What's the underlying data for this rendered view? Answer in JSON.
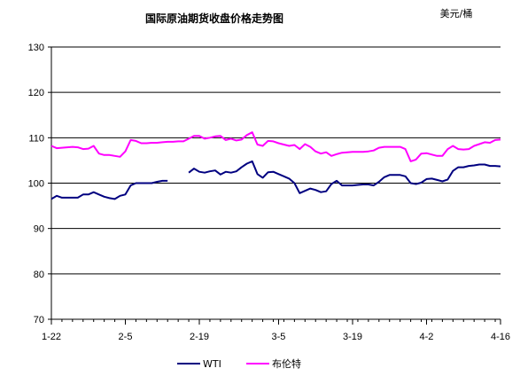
{
  "chart_data": {
    "type": "line",
    "title": "国际原油期货收盘价格走势图",
    "unit": "美元/桶",
    "ylim": [
      70,
      130
    ],
    "yticks": [
      70,
      80,
      90,
      100,
      110,
      120,
      130
    ],
    "xticks": [
      "1-22",
      "2-5",
      "2-19",
      "3-5",
      "3-19",
      "4-2",
      "4-16"
    ],
    "x_range": [
      "1-22",
      "4-16"
    ],
    "grid": "horizontal",
    "legend_position": "bottom",
    "colors": {
      "WTI": "#000080",
      "布伦特": "#ff00ff"
    },
    "series": [
      {
        "name": "WTI",
        "points": [
          [
            "1-22",
            96.5
          ],
          [
            "1-23",
            97.2
          ],
          [
            "1-24",
            96.8
          ],
          [
            "1-25",
            96.8
          ],
          [
            "1-26",
            96.8
          ],
          [
            "1-27",
            96.8
          ],
          [
            "1-28",
            97.5
          ],
          [
            "1-29",
            97.5
          ],
          [
            "1-30",
            98.0
          ],
          [
            "1-31",
            97.5
          ],
          [
            "2-1",
            97.0
          ],
          [
            "2-2",
            96.7
          ],
          [
            "2-3",
            96.5
          ],
          [
            "2-4",
            97.2
          ],
          [
            "2-5",
            97.5
          ],
          [
            "2-6",
            99.5
          ],
          [
            "2-7",
            100.0
          ],
          [
            "2-8",
            100.0
          ],
          [
            "2-9",
            100.0
          ],
          [
            "2-10",
            100.0
          ],
          [
            "2-11",
            100.3
          ],
          [
            "2-12",
            100.5
          ],
          [
            "2-13",
            100.5
          ],
          [
            "2-17",
            102.3
          ],
          [
            "2-18",
            103.2
          ],
          [
            "2-19",
            102.5
          ],
          [
            "2-20",
            102.3
          ],
          [
            "2-21",
            102.6
          ],
          [
            "2-22",
            102.8
          ],
          [
            "2-23",
            101.9
          ],
          [
            "2-24",
            102.5
          ],
          [
            "2-25",
            102.3
          ],
          [
            "2-26",
            102.6
          ],
          [
            "2-27",
            103.5
          ],
          [
            "2-28",
            104.3
          ],
          [
            "2-29",
            104.8
          ],
          [
            "3-1",
            102.0
          ],
          [
            "3-2",
            101.2
          ],
          [
            "3-3",
            102.4
          ],
          [
            "3-4",
            102.5
          ],
          [
            "3-5",
            102.0
          ],
          [
            "3-6",
            101.5
          ],
          [
            "3-7",
            101.0
          ],
          [
            "3-8",
            100.0
          ],
          [
            "3-9",
            97.8
          ],
          [
            "3-10",
            98.3
          ],
          [
            "3-11",
            98.8
          ],
          [
            "3-12",
            98.5
          ],
          [
            "3-13",
            98.0
          ],
          [
            "3-14",
            98.2
          ],
          [
            "3-15",
            99.8
          ],
          [
            "3-16",
            100.5
          ],
          [
            "3-17",
            99.5
          ],
          [
            "3-18",
            99.5
          ],
          [
            "3-19",
            99.5
          ],
          [
            "3-20",
            99.6
          ],
          [
            "3-21",
            99.7
          ],
          [
            "3-22",
            99.7
          ],
          [
            "3-23",
            99.5
          ],
          [
            "3-24",
            100.3
          ],
          [
            "3-25",
            101.3
          ],
          [
            "3-26",
            101.8
          ],
          [
            "3-27",
            101.8
          ],
          [
            "3-28",
            101.8
          ],
          [
            "3-29",
            101.5
          ],
          [
            "3-30",
            100.0
          ],
          [
            "3-31",
            99.8
          ],
          [
            "4-1",
            100.1
          ],
          [
            "4-2",
            100.9
          ],
          [
            "4-3",
            101.0
          ],
          [
            "4-4",
            100.7
          ],
          [
            "4-5",
            100.4
          ],
          [
            "4-6",
            100.8
          ],
          [
            "4-7",
            102.7
          ],
          [
            "4-8",
            103.5
          ],
          [
            "4-9",
            103.5
          ],
          [
            "4-10",
            103.8
          ],
          [
            "4-11",
            103.9
          ],
          [
            "4-12",
            104.1
          ],
          [
            "4-13",
            104.1
          ],
          [
            "4-14",
            103.8
          ],
          [
            "4-15",
            103.8
          ],
          [
            "4-16",
            103.7
          ]
        ]
      },
      {
        "name": "布伦特",
        "points": [
          [
            "1-22",
            108.2
          ],
          [
            "1-23",
            107.7
          ],
          [
            "1-24",
            107.8
          ],
          [
            "1-25",
            107.9
          ],
          [
            "1-26",
            108.0
          ],
          [
            "1-27",
            107.9
          ],
          [
            "1-28",
            107.5
          ],
          [
            "1-29",
            107.6
          ],
          [
            "1-30",
            108.2
          ],
          [
            "1-31",
            106.5
          ],
          [
            "2-1",
            106.2
          ],
          [
            "2-2",
            106.2
          ],
          [
            "2-3",
            106.0
          ],
          [
            "2-4",
            105.8
          ],
          [
            "2-5",
            107.0
          ],
          [
            "2-6",
            109.5
          ],
          [
            "2-7",
            109.3
          ],
          [
            "2-8",
            108.8
          ],
          [
            "2-9",
            108.8
          ],
          [
            "2-10",
            108.9
          ],
          [
            "2-11",
            108.9
          ],
          [
            "2-12",
            109.0
          ],
          [
            "2-13",
            109.1
          ],
          [
            "2-14",
            109.1
          ],
          [
            "2-15",
            109.2
          ],
          [
            "2-16",
            109.2
          ],
          [
            "2-17",
            109.8
          ],
          [
            "2-18",
            110.4
          ],
          [
            "2-19",
            110.4
          ],
          [
            "2-20",
            109.8
          ],
          [
            "2-21",
            110.0
          ],
          [
            "2-22",
            110.3
          ],
          [
            "2-23",
            110.4
          ],
          [
            "2-24",
            109.5
          ],
          [
            "2-25",
            109.8
          ],
          [
            "2-26",
            109.4
          ],
          [
            "2-27",
            109.6
          ],
          [
            "2-28",
            110.6
          ],
          [
            "2-29",
            111.2
          ],
          [
            "3-1",
            108.5
          ],
          [
            "3-2",
            108.2
          ],
          [
            "3-3",
            109.3
          ],
          [
            "3-4",
            109.2
          ],
          [
            "3-5",
            108.8
          ],
          [
            "3-6",
            108.5
          ],
          [
            "3-7",
            108.2
          ],
          [
            "3-8",
            108.4
          ],
          [
            "3-9",
            107.5
          ],
          [
            "3-10",
            108.6
          ],
          [
            "3-11",
            108.0
          ],
          [
            "3-12",
            107.0
          ],
          [
            "3-13",
            106.5
          ],
          [
            "3-14",
            106.8
          ],
          [
            "3-15",
            106.0
          ],
          [
            "3-16",
            106.4
          ],
          [
            "3-17",
            106.7
          ],
          [
            "3-18",
            106.8
          ],
          [
            "3-19",
            106.9
          ],
          [
            "3-20",
            106.9
          ],
          [
            "3-21",
            106.9
          ],
          [
            "3-22",
            107.0
          ],
          [
            "3-23",
            107.2
          ],
          [
            "3-24",
            107.8
          ],
          [
            "3-25",
            108.0
          ],
          [
            "3-26",
            108.0
          ],
          [
            "3-27",
            108.0
          ],
          [
            "3-28",
            108.0
          ],
          [
            "3-29",
            107.5
          ],
          [
            "3-30",
            104.8
          ],
          [
            "3-31",
            105.2
          ],
          [
            "4-1",
            106.5
          ],
          [
            "4-2",
            106.6
          ],
          [
            "4-3",
            106.3
          ],
          [
            "4-4",
            106.0
          ],
          [
            "4-5",
            106.0
          ],
          [
            "4-6",
            107.5
          ],
          [
            "4-7",
            108.2
          ],
          [
            "4-8",
            107.5
          ],
          [
            "4-9",
            107.4
          ],
          [
            "4-10",
            107.5
          ],
          [
            "4-11",
            108.2
          ],
          [
            "4-12",
            108.6
          ],
          [
            "4-13",
            109.0
          ],
          [
            "4-14",
            108.9
          ],
          [
            "4-15",
            109.5
          ],
          [
            "4-16",
            109.6
          ]
        ]
      }
    ]
  }
}
